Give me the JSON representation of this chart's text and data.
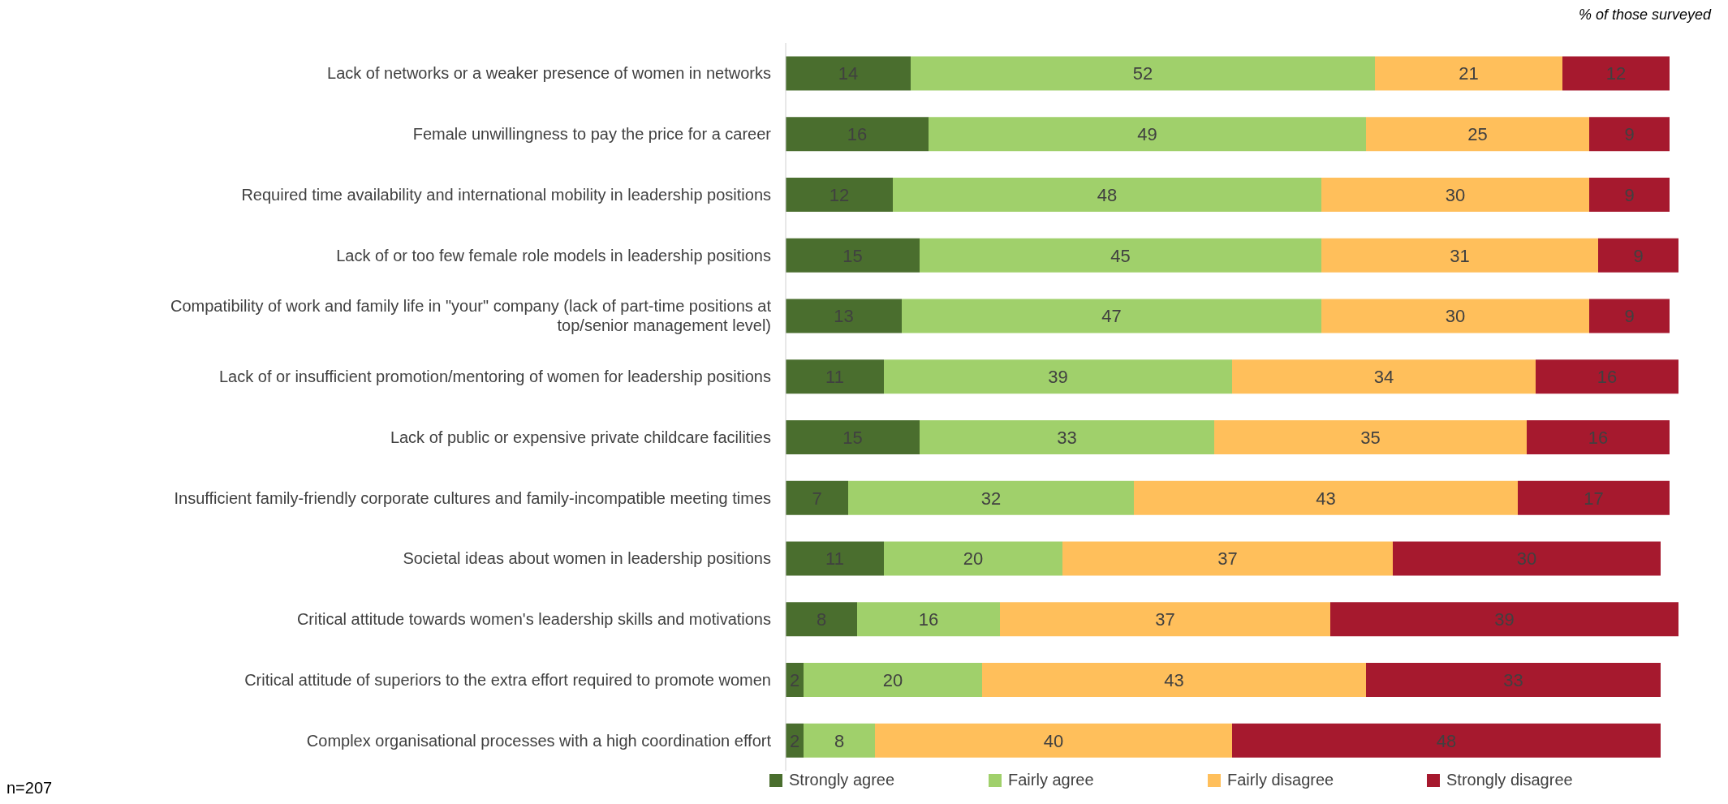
{
  "chart_data": {
    "type": "bar",
    "orientation": "horizontal",
    "stacked": true,
    "data_labels": true,
    "legend": "bottom",
    "categories": [
      "Lack of networks or a weaker presence of women in networks",
      "Female unwillingness to pay the price for a career",
      "Required time availability and international mobility in leadership positions",
      "Lack of or too few female role models in leadership positions",
      "Compatibility of work and family life in \"your\" company (lack of part-time positions at top/senior management level)",
      "Lack of or insufficient promotion/mentoring of women for leadership positions",
      "Lack of public or expensive private childcare facilities",
      "Insufficient family-friendly corporate cultures and family-incompatible meeting times",
      "Societal ideas about women in leadership positions",
      "Critical attitude towards women's leadership skills and motivations",
      "Critical attitude of superiors to the extra effort required to promote women",
      "Complex organisational processes with a high coordination effort"
    ],
    "series": [
      {
        "name": "Strongly agree",
        "color": "#4a6e2e",
        "values": [
          14,
          16,
          12,
          15,
          13,
          11,
          15,
          7,
          11,
          8,
          2,
          2
        ]
      },
      {
        "name": "Fairly agree",
        "color": "#a0d06b",
        "values": [
          52,
          49,
          48,
          45,
          47,
          39,
          33,
          32,
          20,
          16,
          20,
          8
        ]
      },
      {
        "name": "Fairly disagree",
        "color": "#ffbf5b",
        "values": [
          21,
          25,
          30,
          31,
          30,
          34,
          35,
          43,
          37,
          37,
          43,
          40
        ]
      },
      {
        "name": "Strongly disagree",
        "color": "#a6192e",
        "values": [
          12,
          9,
          9,
          9,
          9,
          16,
          16,
          17,
          30,
          39,
          33,
          48
        ]
      }
    ],
    "annotations": [
      "% of those surveyed",
      "n=207"
    ]
  }
}
